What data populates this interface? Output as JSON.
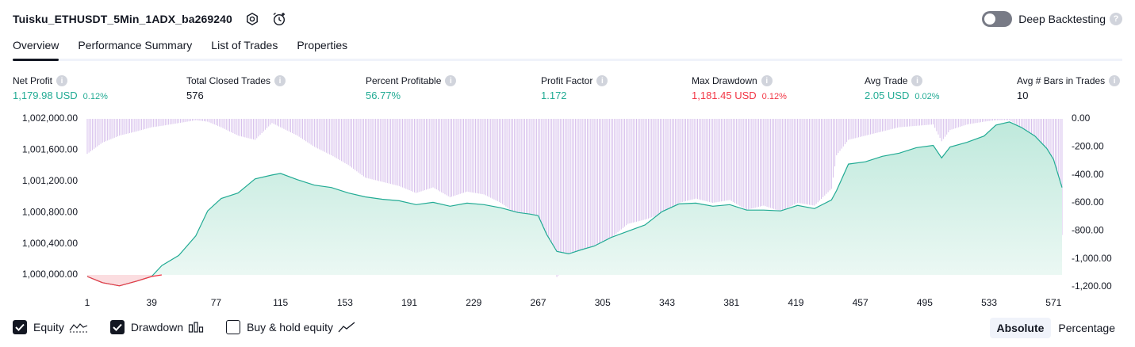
{
  "header": {
    "title": "Tuisku_ETHUSDT_5Min_1ADX_ba269240",
    "deep_backtesting_label": "Deep Backtesting",
    "deep_backtesting_on": false,
    "help_glyph": "?"
  },
  "tabs": [
    {
      "label": "Overview",
      "active": true
    },
    {
      "label": "Performance Summary",
      "active": false
    },
    {
      "label": "List of Trades",
      "active": false
    },
    {
      "label": "Properties",
      "active": false
    }
  ],
  "metrics": [
    {
      "label": "Net Profit",
      "value": "1,179.98 USD",
      "pct": "0.12%",
      "tone": "green"
    },
    {
      "label": "Total Closed Trades",
      "value": "576",
      "pct": "",
      "tone": "neutral"
    },
    {
      "label": "Percent Profitable",
      "value": "56.77%",
      "pct": "",
      "tone": "green"
    },
    {
      "label": "Profit Factor",
      "value": "1.172",
      "pct": "",
      "tone": "green"
    },
    {
      "label": "Max Drawdown",
      "value": "1,181.45 USD",
      "pct": "0.12%",
      "tone": "red"
    },
    {
      "label": "Avg Trade",
      "value": "2.05 USD",
      "pct": "0.02%",
      "tone": "green"
    },
    {
      "label": "Avg # Bars in Trades",
      "value": "10",
      "pct": "",
      "tone": "neutral"
    }
  ],
  "chart_data": {
    "type": "area",
    "x_ticks": [
      "1",
      "39",
      "77",
      "115",
      "153",
      "191",
      "229",
      "267",
      "305",
      "343",
      "381",
      "419",
      "457",
      "495",
      "533",
      "571"
    ],
    "x_range": [
      1,
      576
    ],
    "left_axis": {
      "ticks": [
        "1,002,000.00",
        "1,001,600.00",
        "1,001,200.00",
        "1,000,800.00",
        "1,000,400.00",
        "1,000,000.00"
      ],
      "range": [
        1000000,
        1002000
      ]
    },
    "right_axis": {
      "ticks": [
        "0.00",
        "-200.00",
        "-400.00",
        "-600.00",
        "-800.00",
        "-1,000.00",
        "-1,200.00"
      ],
      "range": [
        -1200,
        0
      ]
    },
    "equity": {
      "x": [
        1,
        10,
        20,
        30,
        39,
        45,
        55,
        65,
        72,
        80,
        90,
        100,
        110,
        115,
        125,
        135,
        145,
        155,
        165,
        175,
        185,
        195,
        205,
        215,
        225,
        235,
        245,
        255,
        262,
        267,
        272,
        278,
        285,
        292,
        300,
        310,
        320,
        330,
        340,
        350,
        360,
        370,
        380,
        390,
        400,
        410,
        420,
        430,
        440,
        443,
        450,
        460,
        470,
        480,
        490,
        500,
        505,
        510,
        520,
        530,
        537,
        545,
        552,
        560,
        567,
        571,
        576
      ],
      "values": [
        999980,
        999900,
        999860,
        999920,
        999980,
        1000120,
        1000250,
        1000500,
        1000820,
        1000980,
        1001050,
        1001230,
        1001280,
        1001300,
        1001220,
        1001150,
        1001120,
        1001050,
        1001000,
        1000970,
        1000950,
        1000900,
        1000930,
        1000880,
        1000920,
        1000900,
        1000860,
        1000800,
        1000780,
        1000760,
        1000520,
        1000300,
        1000270,
        1000320,
        1000370,
        1000480,
        1000560,
        1000640,
        1000810,
        1000910,
        1000920,
        1000880,
        1000900,
        1000830,
        1000830,
        1000820,
        1000890,
        1000850,
        1000960,
        1001080,
        1001420,
        1001450,
        1001520,
        1001560,
        1001630,
        1001660,
        1001500,
        1001640,
        1001700,
        1001780,
        1001920,
        1001960,
        1001890,
        1001780,
        1001620,
        1001480,
        1001120
      ]
    },
    "drawdown": {
      "x": [
        1,
        10,
        20,
        30,
        39,
        45,
        55,
        65,
        72,
        80,
        90,
        100,
        110,
        115,
        125,
        135,
        145,
        155,
        165,
        175,
        185,
        195,
        205,
        215,
        225,
        235,
        245,
        255,
        262,
        267,
        272,
        278,
        285,
        292,
        300,
        310,
        320,
        330,
        340,
        350,
        360,
        370,
        380,
        390,
        400,
        410,
        420,
        430,
        440,
        443,
        450,
        460,
        470,
        480,
        490,
        500,
        505,
        510,
        520,
        530,
        537,
        545,
        552,
        560,
        567,
        571,
        576
      ],
      "values": [
        -250,
        -170,
        -120,
        -90,
        -60,
        -50,
        -30,
        -10,
        -20,
        -60,
        -120,
        -150,
        -30,
        -60,
        -120,
        -200,
        -260,
        -330,
        -420,
        -450,
        -480,
        -530,
        -490,
        -560,
        -520,
        -540,
        -600,
        -690,
        -720,
        -760,
        -950,
        -1130,
        -1050,
        -1000,
        -970,
        -850,
        -750,
        -720,
        -680,
        -600,
        -570,
        -600,
        -580,
        -650,
        -620,
        -660,
        -600,
        -620,
        -500,
        -260,
        -150,
        -120,
        -90,
        -60,
        -50,
        -40,
        -160,
        -80,
        -40,
        -20,
        -10,
        -10,
        -60,
        -200,
        -340,
        -420,
        -830
      ]
    },
    "legend": [
      {
        "label": "Equity",
        "checked": true,
        "icon": "equity-line-icon"
      },
      {
        "label": "Drawdown",
        "checked": true,
        "icon": "drawdown-bars-icon"
      },
      {
        "label": "Buy & hold equity",
        "checked": false,
        "icon": "buy-hold-line-icon"
      }
    ],
    "colors": {
      "equity_line": "#22ab94",
      "equity_fill": "#cdeee5",
      "equity_negative": "#f23645",
      "drawdown_bars": "#d7c0ec"
    }
  },
  "view_modes": [
    {
      "label": "Absolute",
      "active": true
    },
    {
      "label": "Percentage",
      "active": false
    }
  ]
}
